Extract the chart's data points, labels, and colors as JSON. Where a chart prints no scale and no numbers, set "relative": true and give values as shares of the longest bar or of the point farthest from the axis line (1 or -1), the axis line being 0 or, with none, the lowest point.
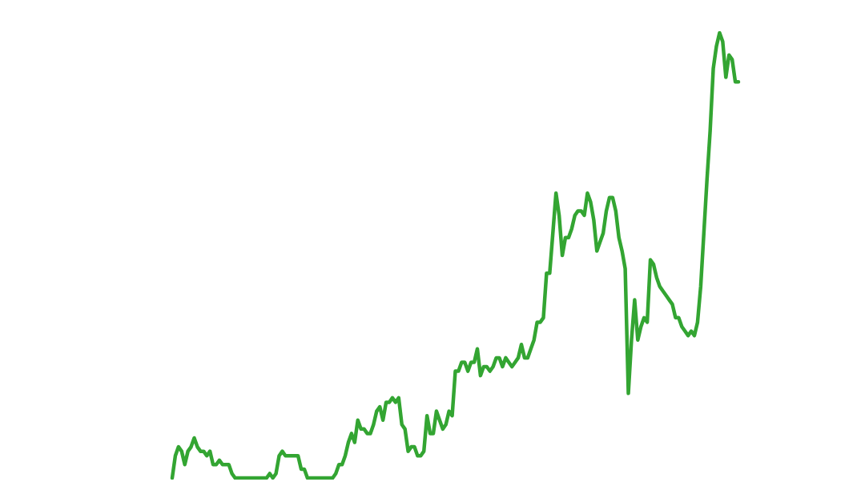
{
  "chart_data": {
    "type": "line",
    "relative": true,
    "line_style": "solid",
    "categories": [
      null,
      null,
      null,
      null,
      null,
      null,
      null,
      null,
      null,
      null,
      null,
      null,
      null,
      null,
      null,
      null,
      null,
      null,
      null,
      null,
      null,
      null,
      null,
      null,
      null,
      null,
      null,
      null,
      null,
      null,
      null,
      null,
      null,
      null,
      null,
      null,
      null,
      null,
      null,
      null,
      null,
      null,
      null,
      null,
      null,
      null,
      null,
      null,
      null,
      null,
      null,
      null,
      null,
      null,
      null,
      null,
      null,
      null,
      null,
      null,
      null,
      null,
      null,
      null,
      null,
      null,
      null,
      null,
      null,
      null,
      null,
      null,
      null,
      null,
      null,
      null,
      null,
      null,
      null,
      null,
      null,
      null,
      null,
      null,
      null,
      null,
      null,
      null,
      null,
      null,
      null,
      null,
      null,
      null,
      null,
      null,
      null,
      null,
      null,
      null,
      null,
      null,
      null,
      null,
      null,
      null,
      null,
      null,
      null,
      null,
      null,
      null,
      null,
      null,
      null,
      null,
      null,
      null,
      null,
      null,
      null,
      null,
      null,
      null,
      null,
      null,
      null,
      null,
      null,
      null,
      null,
      null,
      null,
      null,
      null,
      null,
      null,
      null,
      null,
      null,
      null,
      null,
      null,
      null,
      null,
      null,
      null,
      null,
      null,
      null,
      null,
      null,
      null,
      null,
      null,
      null,
      null,
      null,
      null,
      null,
      null,
      null,
      null,
      null,
      null,
      null,
      null,
      null,
      null,
      null,
      null,
      null,
      null,
      null,
      null,
      null,
      null,
      null,
      null,
      null,
      null
    ],
    "series": [
      {
        "color": "#33a532",
        "values": [
          0,
          0.05,
          0.07,
          0.06,
          0.03,
          0.06,
          0.07,
          0.09,
          0.07,
          0.06,
          0.06,
          0.05,
          0.06,
          0.03,
          0.03,
          0.04,
          0.03,
          0.03,
          0.03,
          0.01,
          0,
          0,
          0,
          0,
          0,
          0,
          0,
          0,
          0,
          0,
          0,
          0.01,
          0,
          0.01,
          0.05,
          0.06,
          0.05,
          0.05,
          0.05,
          0.05,
          0.05,
          0.02,
          0.02,
          0,
          0,
          0,
          0,
          0,
          0,
          0,
          0,
          0,
          0.01,
          0.03,
          0.03,
          0.05,
          0.08,
          0.1,
          0.08,
          0.13,
          0.11,
          0.11,
          0.1,
          0.1,
          0.12,
          0.15,
          0.16,
          0.13,
          0.17,
          0.17,
          0.18,
          0.17,
          0.18,
          0.12,
          0.11,
          0.06,
          0.07,
          0.07,
          0.05,
          0.05,
          0.06,
          0.14,
          0.1,
          0.1,
          0.15,
          0.13,
          0.11,
          0.12,
          0.15,
          0.14,
          0.24,
          0.24,
          0.26,
          0.26,
          0.24,
          0.26,
          0.26,
          0.29,
          0.23,
          0.25,
          0.25,
          0.24,
          0.25,
          0.27,
          0.27,
          0.25,
          0.27,
          0.26,
          0.25,
          0.26,
          0.27,
          0.3,
          0.27,
          0.27,
          0.29,
          0.31,
          0.35,
          0.35,
          0.36,
          0.46,
          0.46,
          0.55,
          0.64,
          0.59,
          0.5,
          0.54,
          0.54,
          0.56,
          0.59,
          0.6,
          0.6,
          0.59,
          0.64,
          0.62,
          0.58,
          0.51,
          0.53,
          0.55,
          0.6,
          0.63,
          0.63,
          0.6,
          0.54,
          0.51,
          0.47,
          0.19,
          0.31,
          0.4,
          0.31,
          0.34,
          0.36,
          0.35,
          0.49,
          0.48,
          0.45,
          0.43,
          0.42,
          0.41,
          0.4,
          0.39,
          0.36,
          0.36,
          0.34,
          0.33,
          0.32,
          0.33,
          0.32,
          0.35,
          0.43,
          0.55,
          0.67,
          0.78,
          0.92,
          0.97,
          1,
          0.98,
          0.9,
          0.95,
          0.94,
          0.89,
          0.89
        ]
      }
    ]
  }
}
